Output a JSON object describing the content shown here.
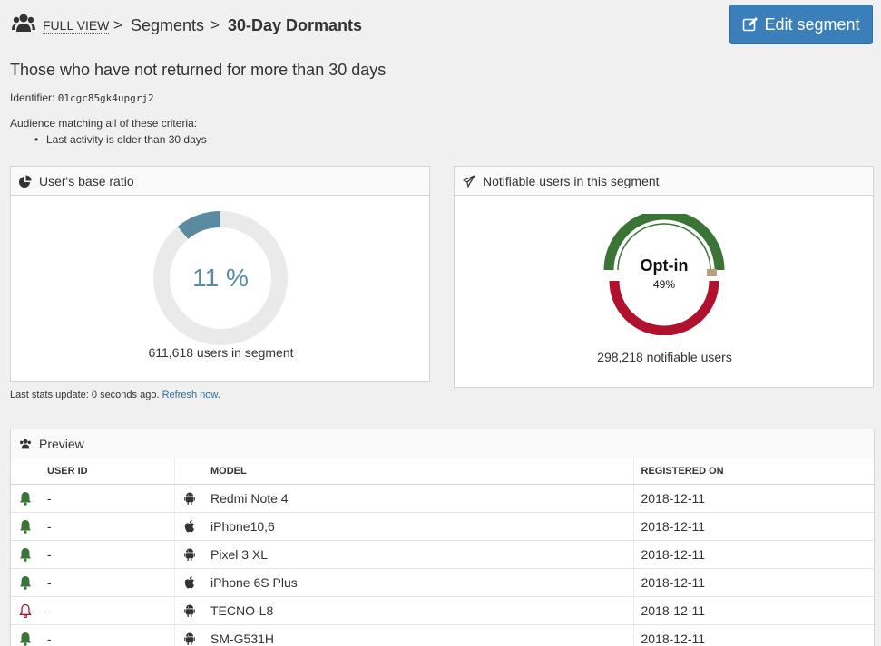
{
  "breadcrumb": {
    "full_view": "FULL VIEW",
    "segments": "Segments",
    "current": "30-Day Dormants",
    "sep": ">"
  },
  "edit_button": "Edit segment",
  "description": "Those who have not returned for more than 30 days",
  "identifier": {
    "label": "Identifier:",
    "value": "01cgc85gk4upgrj2"
  },
  "criteria": {
    "heading": "Audience matching all of these criteria:",
    "items": [
      "Last activity is older than 30 days"
    ]
  },
  "ratio_panel": {
    "title": "User's base ratio",
    "percent_text": "11 %",
    "percent_value": 11,
    "count_text": "611,618 users in segment",
    "color": "#5a8aa0"
  },
  "notif_panel": {
    "title": "Notifiable users in this segment",
    "center_label": "Opt-in",
    "center_pct": "49%",
    "count_text": "298,218 notifiable users",
    "optin_fraction": 0.49,
    "colors": {
      "optin": "#3a7436",
      "optout": "#b0122e",
      "other": "#b8a07a"
    }
  },
  "stats": {
    "text": "Last stats update: 0 seconds ago.",
    "link": "Refresh now",
    "suffix": "."
  },
  "preview": {
    "title": "Preview",
    "headers": {
      "user_id": "USER ID",
      "model": "MODEL",
      "registered": "REGISTERED ON"
    },
    "rows": [
      {
        "notif": "on",
        "user_id": "-",
        "os": "android",
        "model": "Redmi Note 4",
        "registered": "2018-12-11"
      },
      {
        "notif": "on",
        "user_id": "-",
        "os": "apple",
        "model": "iPhone10,6",
        "registered": "2018-12-11"
      },
      {
        "notif": "on",
        "user_id": "-",
        "os": "android",
        "model": "Pixel 3 XL",
        "registered": "2018-12-11"
      },
      {
        "notif": "on",
        "user_id": "-",
        "os": "apple",
        "model": "iPhone 6S Plus",
        "registered": "2018-12-11"
      },
      {
        "notif": "off",
        "user_id": "-",
        "os": "android",
        "model": "TECNO-L8",
        "registered": "2018-12-11"
      },
      {
        "notif": "on",
        "user_id": "-",
        "os": "android",
        "model": "SM-G531H",
        "registered": "2018-12-11"
      }
    ]
  }
}
